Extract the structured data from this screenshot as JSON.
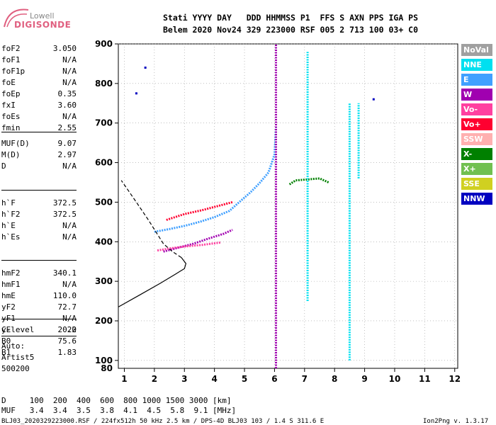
{
  "logo": {
    "brand": "Lowell",
    "product": "DIGISONDE"
  },
  "header": {
    "line1": "Stati YYYY DAY   DDD HHMMSS P1  FFS S AXN PPS IGA PS",
    "line2": "Belem 2020 Nov24 329 223000 RSF 005 2 713 100 03+ C0"
  },
  "params_a": [
    {
      "name": "foF2",
      "value": "3.050"
    },
    {
      "name": "foF1",
      "value": "N/A"
    },
    {
      "name": "foF1p",
      "value": "N/A"
    },
    {
      "name": "foE",
      "value": "N/A"
    },
    {
      "name": "foEp",
      "value": "0.35"
    },
    {
      "name": "fxI",
      "value": "3.60"
    },
    {
      "name": "foEs",
      "value": "N/A"
    },
    {
      "name": "fmin",
      "value": "2.55"
    }
  ],
  "params_b": [
    {
      "name": "MUF(D)",
      "value": "9.07"
    },
    {
      "name": "M(D)",
      "value": "2.97"
    },
    {
      "name": "D",
      "value": "N/A"
    }
  ],
  "params_c": [
    {
      "name": "h`F",
      "value": "372.5"
    },
    {
      "name": "h`F2",
      "value": "372.5"
    },
    {
      "name": "h`E",
      "value": "N/A"
    },
    {
      "name": "h`Es",
      "value": "N/A"
    }
  ],
  "params_d": [
    {
      "name": "hmF2",
      "value": "340.1"
    },
    {
      "name": "hmF1",
      "value": "N/A"
    },
    {
      "name": "hmE",
      "value": "110.0"
    },
    {
      "name": "yF2",
      "value": "72.7"
    },
    {
      "name": "yF1",
      "value": "N/A"
    },
    {
      "name": "yE",
      "value": "20.0"
    },
    {
      "name": "B0",
      "value": "75.6"
    },
    {
      "name": "B1",
      "value": "1.83"
    }
  ],
  "params_e": [
    {
      "name": "C-level",
      "value": "22"
    }
  ],
  "autoscale": {
    "line1": "Auto:",
    "line2": "Artist5",
    "line3": "500200"
  },
  "legend": [
    {
      "label": "NoVal",
      "color": "#a0a0a0"
    },
    {
      "label": "NNE",
      "color": "#00e0f0"
    },
    {
      "label": "E",
      "color": "#40a0ff"
    },
    {
      "label": "W",
      "color": "#a000b0"
    },
    {
      "label": "Vo-",
      "color": "#ff40a0"
    },
    {
      "label": "Vo+",
      "color": "#ff0030"
    },
    {
      "label": "SSW",
      "color": "#ffb0b0"
    },
    {
      "label": "X-",
      "color": "#008000"
    },
    {
      "label": "X+",
      "color": "#70c050"
    },
    {
      "label": "SSE",
      "color": "#d0d020"
    },
    {
      "label": "NNW",
      "color": "#0000c0"
    }
  ],
  "footer": {
    "d_row": "D     100  200  400  600  800 1000 1500 3000 [km]",
    "muf_row": "MUF   3.4  3.4  3.5  3.8  4.1  4.5  5.8  9.1 [MHz]",
    "file_info": "BLJ03_2020329223000.RSF / 224fx512h 50 kHz 2.5 km / DPS-4D BLJ03 103 / 1.4 S 311.6 E",
    "version": "Ion2Png v. 1.3.17"
  },
  "chart_data": {
    "type": "scatter",
    "title": "",
    "xlabel": "",
    "ylabel": "",
    "xlim": [
      0.8,
      12.1
    ],
    "ylim": [
      80,
      900
    ],
    "xticks": [
      1,
      2,
      3,
      4,
      5,
      6,
      7,
      8,
      9,
      10,
      11,
      12
    ],
    "yticks": [
      100,
      200,
      300,
      400,
      500,
      600,
      700,
      800,
      900
    ],
    "ytick_labels_extra": [
      80
    ],
    "grid": "dotted",
    "legend_position": "right",
    "profile_curve": {
      "name": "electron density profile",
      "points": [
        [
          0.8,
          235
        ],
        [
          1.5,
          265
        ],
        [
          2.2,
          295
        ],
        [
          2.7,
          318
        ],
        [
          3.0,
          332
        ],
        [
          3.05,
          345
        ],
        [
          2.9,
          360
        ],
        [
          2.6,
          375
        ],
        [
          2.3,
          395
        ],
        [
          2.05,
          425
        ],
        [
          1.8,
          455
        ],
        [
          1.4,
          500
        ],
        [
          0.9,
          555
        ]
      ]
    },
    "traces": [
      {
        "mode": "E",
        "segments": [
          [
            [
              2.0,
              425
            ],
            [
              2.5,
              432
            ],
            [
              3.0,
              440
            ],
            [
              3.5,
              450
            ],
            [
              4.0,
              462
            ],
            [
              4.5,
              478
            ],
            [
              4.9,
              505
            ],
            [
              5.2,
              525
            ],
            [
              5.5,
              548
            ],
            [
              5.8,
              575
            ],
            [
              6.0,
              620
            ],
            [
              6.05,
              690
            ]
          ]
        ]
      },
      {
        "mode": "W",
        "segments": [
          [
            [
              2.3,
              375
            ],
            [
              2.8,
              385
            ],
            [
              3.3,
              395
            ],
            [
              3.8,
              408
            ],
            [
              4.3,
              420
            ],
            [
              4.6,
              430
            ]
          ],
          [
            [
              6.05,
              80
            ],
            [
              6.05,
              900
            ]
          ]
        ]
      },
      {
        "mode": "Vo-",
        "segments": [
          [
            [
              2.1,
              378
            ],
            [
              2.5,
              383
            ],
            [
              3.0,
              388
            ],
            [
              3.6,
              392
            ],
            [
              4.2,
              398
            ]
          ]
        ]
      },
      {
        "mode": "Vo+",
        "segments": [
          [
            [
              2.4,
              455
            ],
            [
              3.0,
              470
            ],
            [
              3.6,
              480
            ],
            [
              4.2,
              492
            ],
            [
              4.6,
              500
            ]
          ]
        ]
      },
      {
        "mode": "X-",
        "segments": [
          [
            [
              6.5,
              545
            ],
            [
              6.7,
              555
            ],
            [
              7.5,
              560
            ],
            [
              7.8,
              550
            ]
          ]
        ]
      },
      {
        "mode": "NNE",
        "segments": [
          [
            [
              7.1,
              250
            ],
            [
              7.1,
              880
            ]
          ],
          [
            [
              8.5,
              100
            ],
            [
              8.5,
              750
            ]
          ],
          [
            [
              8.8,
              560
            ],
            [
              8.8,
              750
            ]
          ]
        ]
      },
      {
        "mode": "NNW",
        "segments": [
          [
            [
              1.7,
              840
            ]
          ],
          [
            [
              1.4,
              775
            ]
          ],
          [
            [
              9.3,
              760
            ]
          ]
        ]
      }
    ]
  }
}
